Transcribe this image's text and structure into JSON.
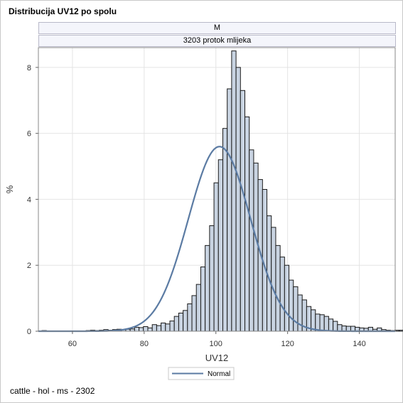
{
  "title": "Distribucija UV12 po spolu",
  "panel": {
    "row1": "M",
    "row2": "3203 protok mlijeka"
  },
  "footnote": "cattle - hol - ms - 2302",
  "colors": {
    "bar_fill": "#c9d4e2",
    "bar_stroke": "#1a1a1a",
    "curve": "#5b7ba3",
    "grid": "#e4e4e4"
  },
  "chart_data": {
    "type": "bar",
    "xlabel": "UV12",
    "ylabel": "%",
    "xlim": [
      50.5,
      150
    ],
    "ylim": [
      0,
      8.6
    ],
    "xticks": [
      60,
      80,
      100,
      120,
      140
    ],
    "yticks": [
      0,
      2,
      4,
      6,
      8
    ],
    "grid": true,
    "bin_width": 1.23,
    "bin_start": 51.5,
    "values": [
      0.02,
      0,
      0,
      0,
      0,
      0,
      0,
      0,
      0,
      0,
      0.02,
      0.03,
      0.02,
      0.03,
      0.05,
      0.03,
      0.05,
      0.06,
      0.05,
      0.06,
      0.07,
      0.12,
      0.11,
      0.14,
      0.1,
      0.2,
      0.17,
      0.25,
      0.22,
      0.31,
      0.45,
      0.55,
      0.63,
      0.83,
      1.08,
      1.42,
      1.95,
      2.6,
      3.2,
      4.5,
      5.2,
      6.15,
      7.35,
      8.5,
      8.0,
      7.3,
      6.5,
      5.5,
      5.1,
      4.6,
      4.3,
      3.5,
      3.15,
      2.6,
      2.25,
      2.0,
      1.55,
      1.35,
      1.1,
      0.95,
      0.75,
      0.65,
      0.52,
      0.5,
      0.45,
      0.37,
      0.3,
      0.2,
      0.16,
      0.15,
      0.15,
      0.12,
      0.1,
      0.09,
      0.12,
      0.06,
      0.1,
      0.05,
      0.03,
      0.02,
      0.03,
      0.03,
      0.03,
      0,
      0,
      0,
      0,
      0,
      0,
      0.12
    ],
    "series": [
      {
        "name": "Normal",
        "type": "line",
        "mean": 101.0,
        "sd": 8.7,
        "peak": 5.6
      }
    ],
    "legend": "bottom-center"
  }
}
